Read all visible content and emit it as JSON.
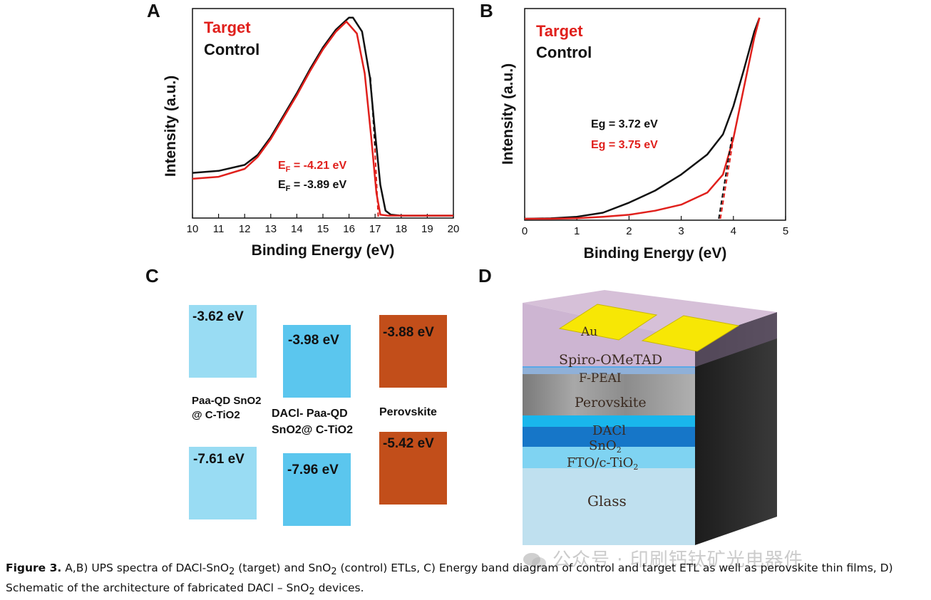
{
  "colors": {
    "target": "#e0201c",
    "control": "#111111",
    "band_light": "#99dcf3",
    "band_mid": "#5bc6ee",
    "band_perov": "#c24e1a",
    "gold": "#f7e705"
  },
  "chart_data": [
    {
      "panel": "A",
      "type": "line",
      "xlabel": "Binding Energy (eV)",
      "ylabel": "Intensity (a.u.)",
      "xlim": [
        10,
        20
      ],
      "x_ticks": [
        "10",
        "11",
        "12",
        "13",
        "14",
        "15",
        "16",
        "17",
        "18",
        "19",
        "20"
      ],
      "legend": [
        "Target",
        "Control"
      ],
      "annotations": {
        "ef_target_prefix": "E",
        "ef_target_sub": "F",
        "ef_target_value": " = -4.21 eV",
        "ef_control_prefix": "E",
        "ef_control_sub": "F",
        "ef_control_value": " = -3.89 eV"
      },
      "series": [
        {
          "name": "Control",
          "color": "#111111",
          "x": [
            10,
            11,
            12,
            12.5,
            13,
            13.5,
            14,
            14.5,
            15,
            15.5,
            16,
            16.15,
            16.5,
            16.8,
            17,
            17.2,
            17.4,
            17.6,
            18,
            19,
            20
          ],
          "y": [
            0.22,
            0.23,
            0.26,
            0.31,
            0.4,
            0.51,
            0.62,
            0.74,
            0.85,
            0.94,
            1.0,
            1.0,
            0.93,
            0.7,
            0.42,
            0.16,
            0.03,
            0.01,
            0.005,
            0.005,
            0.005
          ]
        },
        {
          "name": "Target",
          "color": "#e0201c",
          "x": [
            10,
            11,
            12,
            12.5,
            13,
            13.5,
            14,
            14.5,
            15,
            15.5,
            15.9,
            16.3,
            16.6,
            16.85,
            17.05,
            17.2,
            17.5,
            18,
            19,
            20
          ],
          "y": [
            0.19,
            0.2,
            0.24,
            0.3,
            0.39,
            0.5,
            0.61,
            0.73,
            0.84,
            0.93,
            0.98,
            0.92,
            0.72,
            0.4,
            0.12,
            0.01,
            0.005,
            0.005,
            0.005,
            0.005
          ]
        }
      ]
    },
    {
      "panel": "B",
      "type": "line",
      "xlabel": "Binding Energy (eV)",
      "ylabel": "Intensity (a.u.)",
      "xlim": [
        0,
        5
      ],
      "x_ticks": [
        "0",
        "1",
        "2",
        "3",
        "4",
        "5"
      ],
      "legend": [
        "Target",
        "Control"
      ],
      "annotations": {
        "eg_control": "Eg = 3.72 eV",
        "eg_target": "Eg = 3.75 eV"
      },
      "series": [
        {
          "name": "Control",
          "color": "#111111",
          "x": [
            0,
            0.5,
            1,
            1.5,
            2,
            2.5,
            3,
            3.5,
            3.8,
            4.0,
            4.2,
            4.4,
            4.5
          ],
          "y": [
            0.0,
            0.002,
            0.01,
            0.03,
            0.08,
            0.14,
            0.22,
            0.32,
            0.42,
            0.56,
            0.74,
            0.93,
            1.0
          ]
        },
        {
          "name": "Target",
          "color": "#e0201c",
          "x": [
            0,
            0.5,
            1,
            1.5,
            2,
            2.5,
            3,
            3.5,
            3.8,
            4.0,
            4.2,
            4.4,
            4.5
          ],
          "y": [
            0.0,
            0.0,
            0.003,
            0.01,
            0.02,
            0.04,
            0.07,
            0.13,
            0.22,
            0.4,
            0.65,
            0.9,
            1.0
          ]
        }
      ]
    }
  ],
  "panels": {
    "a": "A",
    "b": "B",
    "c": "C",
    "d": "D"
  },
  "band_diagram": {
    "columns": [
      {
        "name_line1": "Paa-QD SnO2",
        "name_line2": "@ C-TiO2",
        "cb": "-3.62 eV",
        "vb": "-7.61 eV"
      },
      {
        "name_line1": "DACl- Paa-QD",
        "name_line2": "SnO2@ C-TiO2",
        "cb": "-3.98 eV",
        "vb": "-7.96 eV"
      },
      {
        "name_line1": "Perovskite",
        "name_line2": "",
        "cb": "-3.88 eV",
        "vb": "-5.42 eV"
      }
    ]
  },
  "device": {
    "electrode": "Au",
    "layers": {
      "spiro": "Spiro-OMeTAD",
      "fpeai": "F-PEAI",
      "perovskite": "Perovskite",
      "dacl": "DACl",
      "sno2": "SnO",
      "sno2_sub": "2",
      "fto_main": "FTO/c-TiO",
      "fto_sub": "2",
      "glass": "Glass"
    }
  },
  "caption": {
    "label": "Figure 3.",
    "p1": " A,B) UPS spectra of DACl-SnO",
    "sub1": "2",
    "p2": " (target) and SnO",
    "sub2": "2",
    "p3": " (control) ETLs, C) Energy band diagram of control and target ETL as well as perovskite thin films, D) Schematic of the architecture of fabricated DACl – SnO",
    "sub3": "2",
    "p4": " devices."
  },
  "watermark": "公众号 · 印刷钙钛矿光电器件"
}
